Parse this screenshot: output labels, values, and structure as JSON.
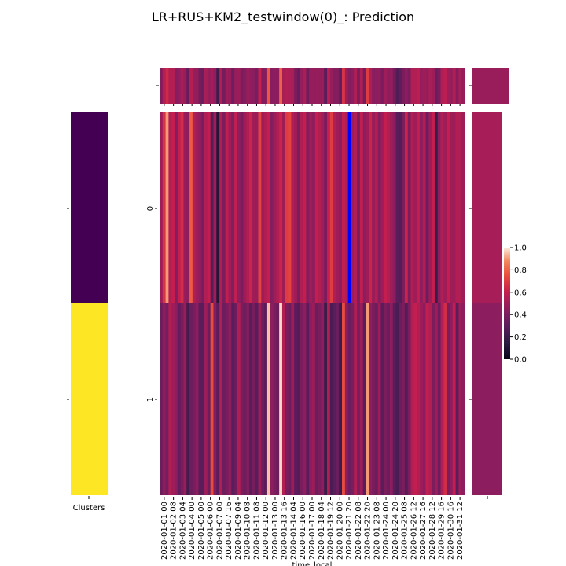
{
  "title": "LR+RUS+KM2_testwindow(0)_: Prediction",
  "chart_data": {
    "type": "heatmap",
    "colormap": "rocket",
    "xlabel": "time_local",
    "x_tick_labels": [
      "2020-01-01 00",
      "2020-01-02 08",
      "2020-01-03 04",
      "2020-01-04 00",
      "2020-01-05 00",
      "2020-01-06 00",
      "2020-01-07 00",
      "2020-01-07 16",
      "2020-01-09 04",
      "2020-01-10 08",
      "2020-01-11 08",
      "2020-01-12 00",
      "2020-01-13 00",
      "2020-01-13 16",
      "2020-01-14 04",
      "2020-01-16 00",
      "2020-01-17 00",
      "2020-01-18 04",
      "2020-01-19 12",
      "2020-01-20 00",
      "2020-01-21 20",
      "2020-01-22 08",
      "2020-01-22 20",
      "2020-01-23 08",
      "2020-01-24 00",
      "2020-01-24 20",
      "2020-01-25 08",
      "2020-01-26 12",
      "2020-01-27 16",
      "2020-01-28 12",
      "2020-01-29 16",
      "2020-01-30 16",
      "2020-01-31 12"
    ],
    "y_tick_labels": [
      "0",
      "1"
    ],
    "clusters_label": "Clusters",
    "clusters": {
      "colormap": "viridis",
      "values": [
        0,
        1
      ],
      "colors": [
        "#440154",
        "#fde725"
      ]
    },
    "highlight_color": "#0000ff",
    "highlight_column": 63,
    "row_groups": [
      {
        "cluster": "0",
        "values": [
          0.5,
          0.67,
          0.9,
          0.55,
          0.6,
          0.42,
          0.6,
          0.65,
          0.48,
          0.45,
          0.78,
          0.55,
          0.5,
          0.45,
          0.4,
          0.55,
          0.6,
          0.28,
          0.5,
          0.12,
          0.55,
          0.4,
          0.6,
          0.5,
          0.42,
          0.6,
          0.45,
          0.4,
          0.5,
          0.55,
          0.62,
          0.5,
          0.48,
          0.72,
          0.5,
          0.55,
          0.6,
          0.42,
          0.5,
          0.55,
          0.62,
          0.5,
          0.7,
          0.72,
          0.55,
          0.5,
          0.4,
          0.55,
          0.6,
          0.42,
          0.5,
          0.45,
          0.6,
          0.55,
          0.5,
          0.4,
          0.6,
          0.7,
          0.55,
          0.5,
          0.45,
          0.6,
          0.55,
          0.5,
          0.5,
          0.55,
          0.4,
          0.6,
          0.45,
          0.5,
          0.62,
          0.48,
          0.55,
          0.42,
          0.5,
          0.6,
          0.55,
          0.5,
          0.45,
          0.3,
          0.28,
          0.4,
          0.62,
          0.4,
          0.55,
          0.5,
          0.6,
          0.45,
          0.55,
          0.35,
          0.5,
          0.6,
          0.2,
          0.45,
          0.55,
          0.5,
          0.6,
          0.5,
          0.5,
          0.55,
          0.55,
          0.5
        ],
        "marginal": 0.52
      },
      {
        "cluster": "1",
        "values": [
          0.35,
          0.45,
          0.38,
          0.55,
          0.5,
          0.45,
          0.32,
          0.4,
          0.48,
          0.22,
          0.35,
          0.4,
          0.45,
          0.3,
          0.3,
          0.5,
          0.35,
          0.75,
          0.42,
          0.3,
          0.55,
          0.35,
          0.4,
          0.45,
          0.3,
          0.35,
          0.55,
          0.4,
          0.35,
          0.42,
          0.3,
          0.38,
          0.3,
          0.5,
          0.35,
          0.3,
          0.95,
          0.45,
          0.4,
          0.35,
          0.98,
          0.55,
          0.4,
          0.35,
          0.5,
          0.3,
          0.28,
          0.4,
          0.45,
          0.3,
          0.45,
          0.5,
          0.35,
          0.4,
          0.45,
          0.2,
          0.55,
          0.25,
          0.3,
          0.35,
          0.2,
          0.75,
          0.45,
          0.35,
          0.4,
          0.55,
          0.4,
          0.5,
          0.3,
          0.9,
          0.45,
          0.4,
          0.35,
          0.5,
          0.3,
          0.4,
          0.35,
          0.45,
          0.3,
          0.25,
          0.35,
          0.4,
          0.28,
          0.4,
          0.55,
          0.6,
          0.55,
          0.5,
          0.45,
          0.6,
          0.55,
          0.4,
          0.5,
          0.35,
          0.55,
          0.65,
          0.4,
          0.45,
          0.6,
          0.3,
          0.5,
          0.45
        ],
        "marginal": 0.45
      }
    ],
    "colorbar": {
      "range": [
        0.0,
        1.0
      ],
      "ticks": [
        "0.0",
        "0.2",
        "0.4",
        "0.6",
        "0.8",
        "1.0"
      ]
    }
  }
}
